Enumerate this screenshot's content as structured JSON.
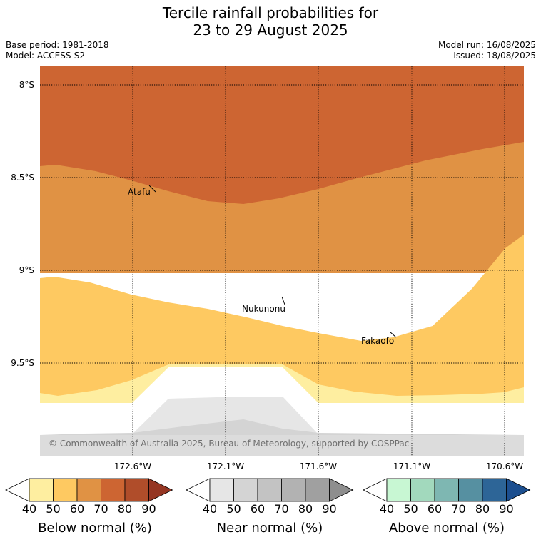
{
  "title": {
    "line1": "Tercile rainfall probabilities for",
    "line2": "23 to 29 August 2025"
  },
  "meta": {
    "base_period": "Base period: 1981-2018",
    "model": "Model: ACCESS-S2",
    "model_run": "Model run: 16/08/2025",
    "issued": "Issued: 18/08/2025"
  },
  "map": {
    "lat_labels": [
      "8°S",
      "8.5°S",
      "9°S",
      "9.5°S"
    ],
    "lon_labels": [
      "172.6°W",
      "172.1°W",
      "171.6°W",
      "171.1°W",
      "170.6°W"
    ],
    "places": {
      "atafu": "Atafu",
      "nukunonu": "Nukunonu",
      "fakaofo": "Fakaofo"
    },
    "copyright": "© Commonwealth of Australia 2025, Bureau of Meteorology, supported by COSPPac"
  },
  "colorbars": {
    "ticks": [
      "40",
      "50",
      "60",
      "70",
      "80",
      "90"
    ],
    "below": {
      "title": "Below normal (%)",
      "colors": [
        "#ffffff",
        "#feeea0",
        "#fec961",
        "#e09244",
        "#cd6532",
        "#b04d2a",
        "#953623"
      ]
    },
    "near": {
      "title": "Near normal (%)",
      "colors": [
        "#ffffff",
        "#e6e6e6",
        "#d4d4d4",
        "#c3c3c3",
        "#b2b2b2",
        "#a0a0a0",
        "#8e8e8e"
      ]
    },
    "above": {
      "title": "Above normal (%)",
      "colors": [
        "#ffffff",
        "#c8f7d3",
        "#a2d9bd",
        "#7eb7b2",
        "#5690a1",
        "#2d6597",
        "#1c4f8f"
      ]
    }
  }
}
